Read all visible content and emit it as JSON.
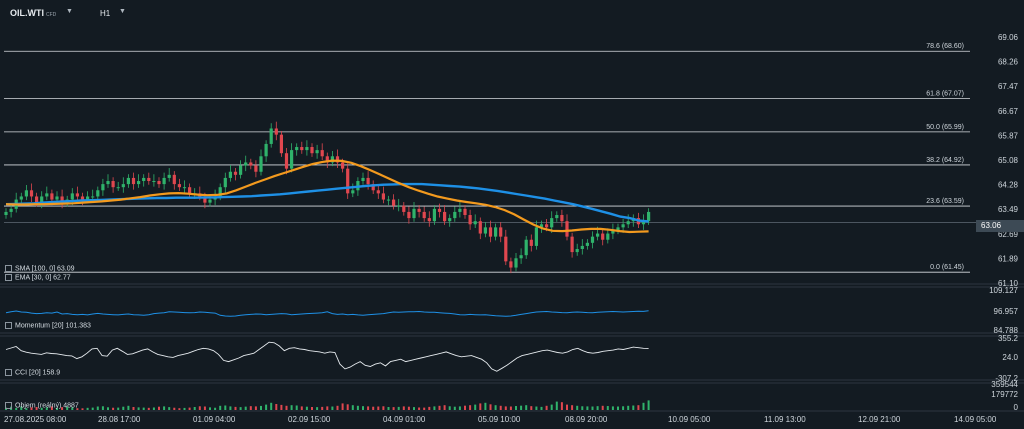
{
  "header": {
    "symbol": "OIL.WTI",
    "symbol_suffix": "CFD",
    "timeframe": "H1",
    "current_price": "63.06"
  },
  "indicators": {
    "sma_label": "SMA [100, 0] 63.09",
    "ema_label": "EMA [30, 0] 62.77",
    "momentum_label": "Momentum [20] 101.383",
    "cci_label": "CCI [20] 158.9",
    "volume_label": "Objem (reálný) 4887"
  },
  "colors": {
    "background": "#131b22",
    "candle_up": "#2fb36b",
    "candle_down": "#e0474f",
    "sma": "#1e90e6",
    "ema": "#f39a1e",
    "fib_line": "#d9dde1",
    "grid": "#27313a"
  },
  "chart_data": {
    "type": "candlestick",
    "price_axis_ticks": [
      "69.06",
      "68.26",
      "67.47",
      "66.67",
      "65.87",
      "65.08",
      "64.28",
      "63.49",
      "62.69",
      "61.89",
      "61.10"
    ],
    "ylim": [
      61.1,
      69.06
    ],
    "fibonacci": [
      {
        "label": "78.6 (68.60)",
        "value": 68.6
      },
      {
        "label": "61.8 (67.07)",
        "value": 67.07
      },
      {
        "label": "50.0 (65.99)",
        "value": 65.99
      },
      {
        "label": "38.2 (64.92)",
        "value": 64.92
      },
      {
        "label": "23.6 (63.59)",
        "value": 63.59
      },
      {
        "label": "0.0 (61.45)",
        "value": 61.45
      }
    ],
    "x_tick_labels": [
      "27.08.2025 08:00",
      "28.08 17:00",
      "01.09 04:00",
      "02.09 15:00",
      "04.09 01:00",
      "05.09 10:00",
      "08.09 20:00",
      "10.09 05:00",
      "11.09 13:00",
      "12.09 21:00",
      "14.09 05:00"
    ],
    "close": [
      63.4,
      63.5,
      63.8,
      63.9,
      64.1,
      63.9,
      63.7,
      63.9,
      64.0,
      63.8,
      63.9,
      63.7,
      63.8,
      64.0,
      63.9,
      63.8,
      63.9,
      63.9,
      64.1,
      64.3,
      64.4,
      64.2,
      64.2,
      64.3,
      64.5,
      64.3,
      64.4,
      64.5,
      64.4,
      64.4,
      64.3,
      64.5,
      64.6,
      64.3,
      64.2,
      64.2,
      64.0,
      64.0,
      63.9,
      63.7,
      63.8,
      63.9,
      64.2,
      64.5,
      64.7,
      64.6,
      64.9,
      65.0,
      64.9,
      64.7,
      65.2,
      65.6,
      66.1,
      65.9,
      65.3,
      64.8,
      65.4,
      65.5,
      65.4,
      65.5,
      65.3,
      65.4,
      65.2,
      65.0,
      65.2,
      65.0,
      64.8,
      64.0,
      64.1,
      64.4,
      64.5,
      64.3,
      64.1,
      64.0,
      63.8,
      63.8,
      63.6,
      63.6,
      63.4,
      63.2,
      63.5,
      63.4,
      63.2,
      63.1,
      63.5,
      63.4,
      63.1,
      63.2,
      63.4,
      63.5,
      63.3,
      63.0,
      63.1,
      62.7,
      62.9,
      62.6,
      62.9,
      62.6,
      61.8,
      61.6,
      61.9,
      62.0,
      62.5,
      62.3,
      62.9,
      63.0,
      62.9,
      63.2,
      63.3,
      63.1,
      62.6,
      62.1,
      62.2,
      62.3,
      62.4,
      62.6,
      62.7,
      62.5,
      62.7,
      62.8,
      62.9,
      63.0,
      63.1,
      63.2,
      63.0,
      63.1,
      63.4
    ],
    "sma100": [
      63.65,
      63.66,
      63.67,
      63.68,
      63.7,
      63.72,
      63.74,
      63.75,
      63.77,
      63.78,
      63.79,
      63.8,
      63.81,
      63.82,
      63.83,
      63.84,
      63.85,
      63.85,
      63.86,
      63.86,
      63.86,
      63.87,
      63.87,
      63.88,
      63.89,
      63.9,
      63.91,
      63.93,
      63.95,
      63.97,
      64.0,
      64.03,
      64.06,
      64.09,
      64.12,
      64.15,
      64.18,
      64.21,
      64.24,
      64.26,
      64.28,
      64.29,
      64.3,
      64.3,
      64.3,
      64.28,
      64.26,
      64.24,
      64.22,
      64.19,
      64.16,
      64.12,
      64.08,
      64.03,
      63.98,
      63.93,
      63.88,
      63.83,
      63.77,
      63.71,
      63.65,
      63.58,
      63.5,
      63.42,
      63.34,
      63.25,
      63.2,
      63.12,
      63.09
    ],
    "sma_x_start": 0,
    "ema30": [
      63.65,
      63.64,
      63.64,
      63.65,
      63.65,
      63.66,
      63.67,
      63.68,
      63.7,
      63.72,
      63.74,
      63.77,
      63.8,
      63.84,
      63.88,
      63.93,
      63.97,
      64.0,
      64.01,
      63.99,
      63.96,
      63.94,
      63.95,
      64.0,
      64.1,
      64.22,
      64.34,
      64.45,
      64.56,
      64.66,
      64.76,
      64.86,
      64.95,
      65.02,
      65.06,
      65.05,
      64.99,
      64.88,
      64.75,
      64.61,
      64.47,
      64.33,
      64.2,
      64.09,
      63.99,
      63.9,
      63.83,
      63.77,
      63.72,
      63.68,
      63.63,
      63.56,
      63.46,
      63.32,
      63.15,
      62.99,
      62.86,
      62.79,
      62.78,
      62.8,
      62.83,
      62.85,
      62.85,
      62.82,
      62.78,
      62.75,
      62.76,
      62.77
    ],
    "momentum": [
      0.55,
      0.62,
      0.68,
      0.6,
      0.58,
      0.52,
      0.48,
      0.5,
      0.55,
      0.52,
      0.6,
      0.45,
      0.48,
      0.42,
      0.4,
      0.42,
      0.38,
      0.45,
      0.5,
      0.45,
      0.42,
      0.4,
      0.38,
      0.42,
      0.45,
      0.4,
      0.38,
      0.36,
      0.4,
      0.48,
      0.52,
      0.55,
      0.62,
      0.6,
      0.58,
      0.56,
      0.54,
      0.56,
      0.6,
      0.58,
      0.55,
      0.52,
      0.35,
      0.3,
      0.28,
      0.3,
      0.35,
      0.4,
      0.42,
      0.45,
      0.44,
      0.4,
      0.42,
      0.45,
      0.48,
      0.46,
      0.4,
      0.42,
      0.45,
      0.48,
      0.5,
      0.52,
      0.55,
      0.62,
      0.48,
      0.42,
      0.45,
      0.4,
      0.42,
      0.38,
      0.36,
      0.4,
      0.42,
      0.45,
      0.48,
      0.55,
      0.6,
      0.58,
      0.6,
      0.62,
      0.62,
      0.64,
      0.6,
      0.58,
      0.58,
      0.55,
      0.52,
      0.5,
      0.45,
      0.4,
      0.38,
      0.42,
      0.4,
      0.38,
      0.4,
      0.36,
      0.32,
      0.3,
      0.28,
      0.3,
      0.35,
      0.42,
      0.48,
      0.55,
      0.6,
      0.62,
      0.64,
      0.6,
      0.58,
      0.56,
      0.55,
      0.58,
      0.6,
      0.58,
      0.56,
      0.55,
      0.58,
      0.6,
      0.62,
      0.64,
      0.62,
      0.6,
      0.62,
      0.64,
      0.66,
      0.65,
      0.7
    ],
    "cci": [
      140,
      165,
      190,
      120,
      95,
      80,
      70,
      60,
      85,
      75,
      70,
      55,
      40,
      35,
      -10,
      20,
      80,
      150,
      160,
      40,
      30,
      130,
      160,
      110,
      60,
      70,
      100,
      130,
      150,
      100,
      60,
      40,
      20,
      10,
      40,
      60,
      80,
      110,
      140,
      160,
      150,
      120,
      60,
      -40,
      -60,
      -30,
      0,
      40,
      60,
      80,
      140,
      200,
      260,
      250,
      200,
      120,
      160,
      170,
      150,
      140,
      120,
      110,
      100,
      80,
      100,
      90,
      -100,
      -180,
      -150,
      -100,
      -60,
      -120,
      -140,
      -100,
      -80,
      -130,
      -60,
      -40,
      -20,
      -60,
      -40,
      -20,
      0,
      20,
      40,
      60,
      80,
      100,
      70,
      40,
      20,
      30,
      40,
      10,
      -20,
      -80,
      -180,
      -220,
      -170,
      -120,
      -60,
      0,
      40,
      60,
      80,
      100,
      120,
      130,
      110,
      90,
      80,
      100,
      140,
      160,
      120,
      90,
      80,
      90,
      110,
      120,
      130,
      150,
      140,
      160,
      180,
      170,
      160,
      158.9
    ],
    "volume": [
      40,
      55,
      35,
      60,
      30,
      45,
      50,
      38,
      42,
      60,
      35,
      48,
      52,
      44,
      30,
      28,
      36,
      40,
      58,
      62,
      45,
      38,
      40,
      55,
      70,
      50,
      44,
      40,
      36,
      42,
      55,
      60,
      48,
      38,
      30,
      35,
      40,
      50,
      62,
      58,
      44,
      38,
      70,
      75,
      60,
      52,
      48,
      56,
      64,
      60,
      68,
      90,
      120,
      100,
      85,
      70,
      80,
      75,
      60,
      55,
      50,
      48,
      52,
      60,
      58,
      70,
      110,
      95,
      80,
      70,
      64,
      60,
      55,
      58,
      62,
      50,
      48,
      52,
      60,
      55,
      48,
      42,
      40,
      52,
      60,
      70,
      80,
      62,
      55,
      60,
      72,
      80,
      90,
      110,
      120,
      95,
      80,
      70,
      60,
      58,
      66,
      72,
      80,
      64,
      58,
      52,
      70,
      90,
      140,
      130,
      90,
      80,
      70,
      62,
      60,
      58,
      64,
      70,
      66,
      60,
      58,
      62,
      70,
      75,
      80,
      120,
      160
    ]
  }
}
